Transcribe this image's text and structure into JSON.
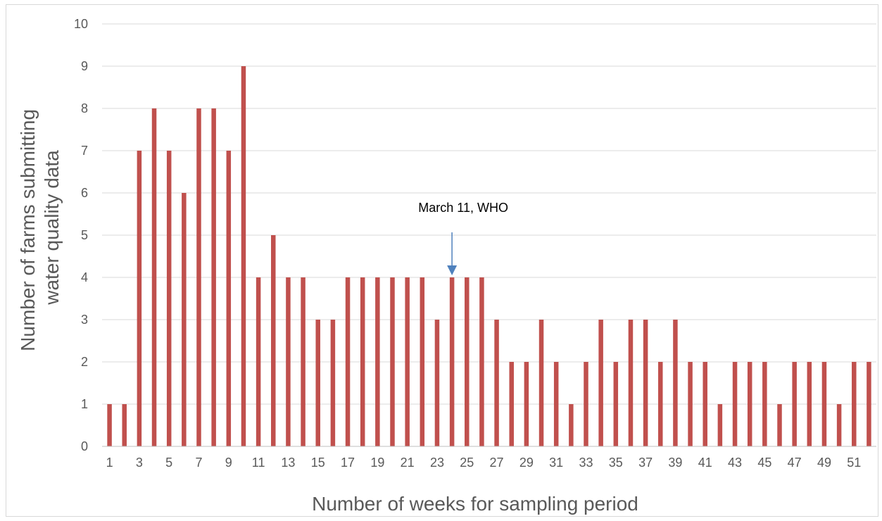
{
  "chart_data": {
    "type": "bar",
    "categories": [
      1,
      2,
      3,
      4,
      5,
      6,
      7,
      8,
      9,
      10,
      11,
      12,
      13,
      14,
      15,
      16,
      17,
      18,
      19,
      20,
      21,
      22,
      23,
      24,
      25,
      26,
      27,
      28,
      29,
      30,
      31,
      32,
      33,
      34,
      35,
      36,
      37,
      38,
      39,
      40,
      41,
      42,
      43,
      44,
      45,
      46,
      47,
      48,
      49,
      50,
      51,
      52
    ],
    "values": [
      1,
      1,
      7,
      8,
      7,
      6,
      8,
      8,
      7,
      9,
      4,
      5,
      4,
      4,
      3,
      3,
      4,
      4,
      4,
      4,
      4,
      4,
      3,
      4,
      4,
      4,
      3,
      2,
      2,
      3,
      2,
      1,
      2,
      3,
      2,
      3,
      3,
      2,
      3,
      2,
      2,
      1,
      2,
      2,
      2,
      1,
      2,
      2,
      2,
      1,
      2,
      2
    ],
    "xtick_labels": [
      "1",
      "3",
      "5",
      "7",
      "9",
      "11",
      "13",
      "15",
      "17",
      "19",
      "21",
      "23",
      "25",
      "27",
      "29",
      "31",
      "33",
      "35",
      "37",
      "39",
      "41",
      "43",
      "45",
      "47",
      "49",
      "51"
    ],
    "ytick_labels": [
      "0",
      "1",
      "2",
      "3",
      "4",
      "5",
      "6",
      "7",
      "8",
      "9",
      "10"
    ],
    "xlabel": "Number of weeks for sampling period",
    "ylabel_line1": "Number of farms submitting",
    "ylabel_line2": "water quality data",
    "ylim": [
      0,
      10
    ],
    "grid": true,
    "annotation": {
      "text": "March 11, WHO",
      "category": 24
    },
    "colors": {
      "bar": "#c0504d",
      "grid": "#d9d9d9",
      "axis": "#bfbfbf",
      "arrow": "#4f81bd",
      "tick_text": "#595959"
    }
  }
}
